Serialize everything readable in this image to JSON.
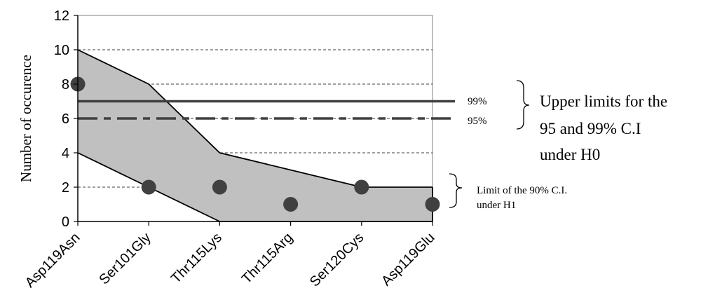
{
  "chart_data": {
    "type": "line",
    "ylabel": "Number of occurence",
    "ylim": [
      0,
      12
    ],
    "yticks": [
      0,
      2,
      4,
      6,
      8,
      10,
      12
    ],
    "grid": true,
    "categories": [
      "Asp119Asn",
      "Ser101Gly",
      "Thr115Lys",
      "Thr115Arg",
      "Ser120Cys",
      "Asp119Glu"
    ],
    "band_upper": [
      10,
      8,
      4,
      3,
      2,
      2
    ],
    "band_lower": [
      4,
      2,
      0,
      0,
      0,
      0
    ],
    "points": [
      8,
      2,
      2,
      1,
      2,
      1
    ],
    "hlines": [
      {
        "value": 7,
        "style": "solid",
        "label": "99%"
      },
      {
        "value": 6,
        "style": "dashdot",
        "label": "95%"
      }
    ],
    "annotations": {
      "upper_limits": [
        "Upper limits for the",
        "95 and 99% C.I",
        "under H0"
      ],
      "lower_limit": [
        "Limit of the 90% C.I.",
        "under H1"
      ]
    },
    "colors": {
      "band": "#c0c0c0",
      "marker": "#404040",
      "lines": "#404040",
      "grid": "#808080"
    }
  }
}
